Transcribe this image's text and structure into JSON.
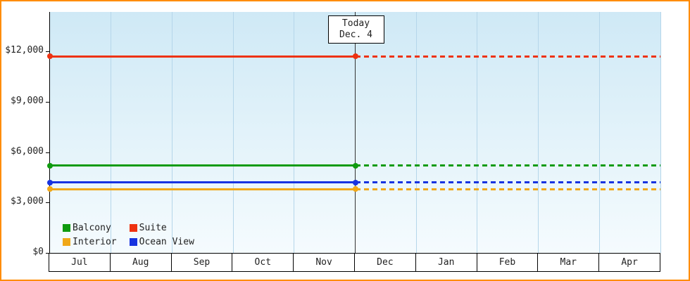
{
  "frame": {
    "border_color": "#ff8c00",
    "plot_bg_top": "#cfe9f6",
    "plot_bg_bottom": "#f5fbfe",
    "gridline_color": "#b5d6ea"
  },
  "today": {
    "line1": "Today",
    "line2": "Dec. 4"
  },
  "y_axis": {
    "ticks": [
      {
        "v": 0,
        "label": "$0"
      },
      {
        "v": 3000,
        "label": "$3,000"
      },
      {
        "v": 6000,
        "label": "$6,000"
      },
      {
        "v": 9000,
        "label": "$9,000"
      },
      {
        "v": 12000,
        "label": "$12,000"
      }
    ]
  },
  "months": [
    "Jul",
    "Aug",
    "Sep",
    "Oct",
    "Nov",
    "Dec",
    "Jan",
    "Feb",
    "Mar",
    "Apr"
  ],
  "legend": [
    {
      "label": "Balcony",
      "color": "#0f9b0f"
    },
    {
      "label": "Suite",
      "color": "#ee3211"
    },
    {
      "label": "Interior",
      "color": "#f0a818"
    },
    {
      "label": "Ocean View",
      "color": "#1733e0"
    }
  ],
  "chart_data": {
    "type": "line",
    "title": "",
    "x_categories": [
      "Jul",
      "Aug",
      "Sep",
      "Oct",
      "Nov",
      "Dec",
      "Jan",
      "Feb",
      "Mar",
      "Apr"
    ],
    "today_marker": {
      "label": "Today Dec. 4",
      "x_boundary_index": 5,
      "of_boundaries": 10
    },
    "ylim": [
      0,
      13500
    ],
    "y_ticks": [
      0,
      3000,
      6000,
      9000,
      12000
    ],
    "grid": "vertical-month-boundaries",
    "legend_position": "bottom-left-inside",
    "series": [
      {
        "name": "Suite",
        "color": "#ee3211",
        "value": 11700,
        "past_style": "solid",
        "future_style": "dotted"
      },
      {
        "name": "Balcony",
        "color": "#0f9b0f",
        "value": 5200,
        "past_style": "solid",
        "future_style": "dotted"
      },
      {
        "name": "Ocean View",
        "color": "#1733e0",
        "value": 4200,
        "past_style": "solid",
        "future_style": "dotted"
      },
      {
        "name": "Interior",
        "color": "#f0a818",
        "value": 3800,
        "past_style": "solid",
        "future_style": "dotted"
      }
    ]
  }
}
